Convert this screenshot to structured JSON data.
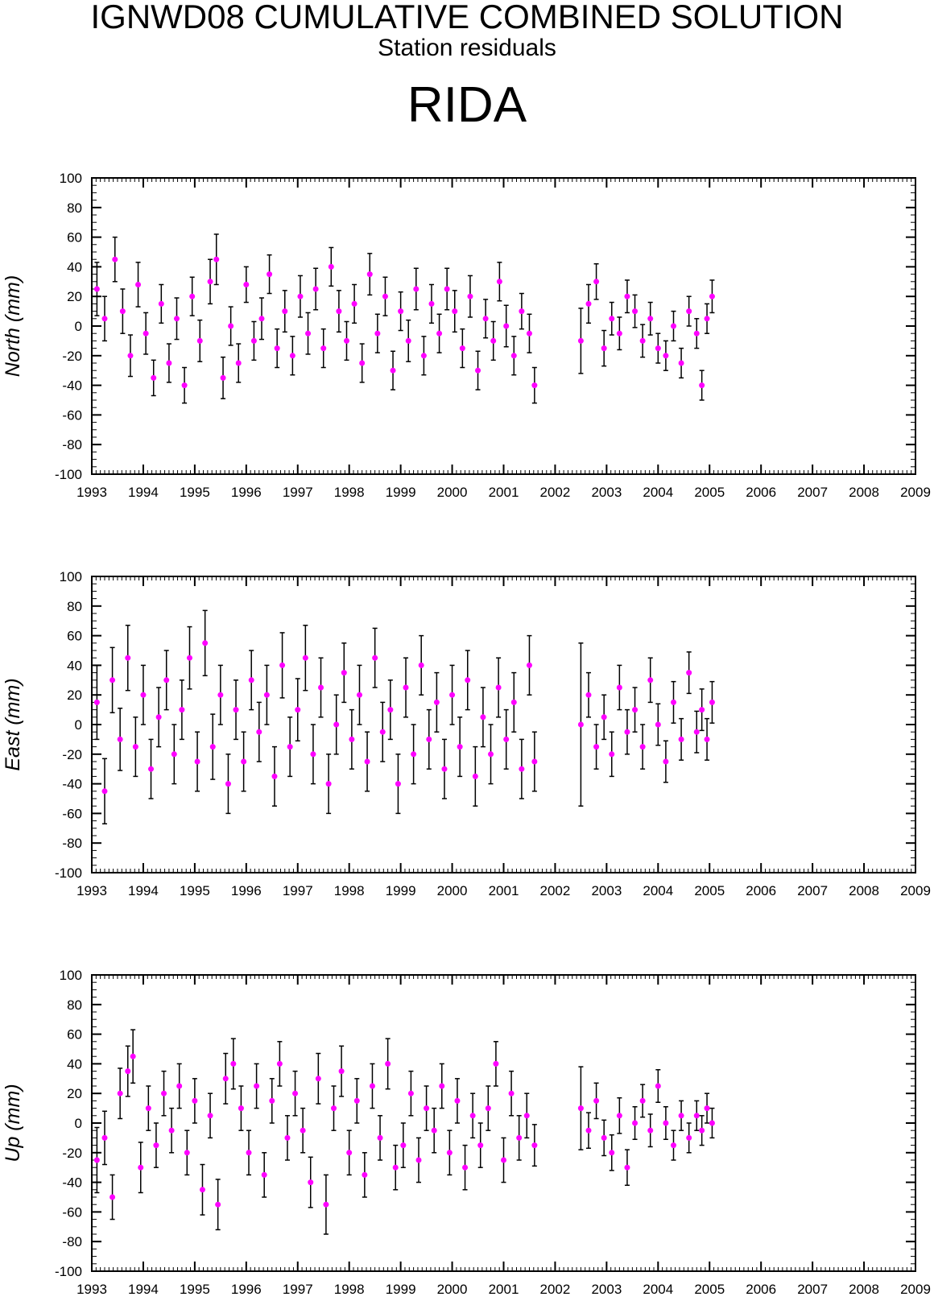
{
  "header": {
    "title": "IGNWD08 CUMULATIVE COMBINED SOLUTION",
    "subtitle": "Station residuals",
    "station": "RIDA"
  },
  "colors": {
    "point": "#ff00ff",
    "errorbar": "#000000",
    "frame": "#000000"
  },
  "chart_data": [
    {
      "type": "scatter",
      "ylabel": "North (mm)",
      "xlim": [
        1993,
        2009
      ],
      "ylim": [
        -100,
        100
      ],
      "x_ticks": [
        "1993",
        "1994",
        "1995",
        "1996",
        "1997",
        "1998",
        "1999",
        "2000",
        "2001",
        "2002",
        "2003",
        "2004",
        "2005",
        "2006",
        "2007",
        "2008",
        "2009"
      ],
      "y_ticks": [
        "100",
        "80",
        "60",
        "40",
        "20",
        "0",
        "-20",
        "-40",
        "-60",
        "-80",
        "-100"
      ],
      "error_bars": true,
      "series": [
        {
          "x": [
            1993.1,
            1993.25,
            1993.45,
            1993.6,
            1993.75,
            1993.9,
            1994.05,
            1994.2,
            1994.35,
            1994.5,
            1994.65,
            1994.8,
            1994.95,
            1995.1,
            1995.3,
            1995.42,
            1995.55,
            1995.7,
            1995.85,
            1996.0,
            1996.15,
            1996.3,
            1996.45,
            1996.6,
            1996.75,
            1996.9,
            1997.05,
            1997.2,
            1997.35,
            1997.5,
            1997.65,
            1997.8,
            1997.95,
            1998.1,
            1998.25,
            1998.4,
            1998.55,
            1998.7,
            1998.85,
            1999.0,
            1999.15,
            1999.3,
            1999.45,
            1999.6,
            1999.75,
            1999.9,
            2000.05,
            2000.2,
            2000.35,
            2000.5,
            2000.65,
            2000.8,
            2000.92,
            2001.05,
            2001.2,
            2001.35,
            2001.5,
            2001.6,
            2002.5,
            2002.65,
            2002.8,
            2002.95,
            2003.1,
            2003.25,
            2003.4,
            2003.55,
            2003.7,
            2003.85,
            2004.0,
            2004.15,
            2004.3,
            2004.45,
            2004.6,
            2004.75,
            2004.85,
            2004.95,
            2005.05
          ],
          "y": [
            25,
            5,
            45,
            10,
            -20,
            28,
            -5,
            -35,
            15,
            -25,
            5,
            -40,
            20,
            -10,
            30,
            45,
            -35,
            0,
            -25,
            28,
            -10,
            5,
            35,
            -15,
            10,
            -20,
            20,
            -5,
            25,
            -15,
            40,
            10,
            -10,
            15,
            -25,
            35,
            -5,
            20,
            -30,
            10,
            -10,
            25,
            -20,
            15,
            -5,
            25,
            10,
            -15,
            20,
            -30,
            5,
            -10,
            30,
            0,
            -20,
            10,
            -5,
            -40,
            -10,
            15,
            30,
            -15,
            5,
            -5,
            20,
            10,
            -10,
            5,
            -15,
            -20,
            0,
            -25,
            10,
            -5,
            -40,
            5,
            20
          ],
          "err": [
            18,
            15,
            15,
            15,
            14,
            15,
            14,
            12,
            13,
            13,
            14,
            12,
            13,
            14,
            15,
            17,
            14,
            13,
            13,
            12,
            13,
            14,
            13,
            13,
            14,
            13,
            14,
            14,
            14,
            13,
            13,
            14,
            13,
            13,
            13,
            14,
            13,
            13,
            13,
            13,
            14,
            14,
            13,
            13,
            13,
            14,
            14,
            13,
            14,
            13,
            13,
            13,
            13,
            14,
            13,
            12,
            13,
            12,
            22,
            13,
            12,
            12,
            11,
            11,
            11,
            11,
            11,
            11,
            10,
            10,
            10,
            10,
            10,
            10,
            10,
            10,
            11
          ]
        }
      ]
    },
    {
      "type": "scatter",
      "ylabel": "East (mm)",
      "xlim": [
        1993,
        2009
      ],
      "ylim": [
        -100,
        100
      ],
      "x_ticks": [
        "1993",
        "1994",
        "1995",
        "1996",
        "1997",
        "1998",
        "1999",
        "2000",
        "2001",
        "2002",
        "2003",
        "2004",
        "2005",
        "2006",
        "2007",
        "2008",
        "2009"
      ],
      "y_ticks": [
        "100",
        "80",
        "60",
        "40",
        "20",
        "0",
        "-20",
        "-40",
        "-60",
        "-80",
        "-100"
      ],
      "error_bars": true,
      "series": [
        {
          "x": [
            1993.1,
            1993.25,
            1993.4,
            1993.55,
            1993.7,
            1993.85,
            1994.0,
            1994.15,
            1994.3,
            1994.45,
            1994.6,
            1994.75,
            1994.9,
            1995.05,
            1995.2,
            1995.35,
            1995.5,
            1995.65,
            1995.8,
            1995.95,
            1996.1,
            1996.25,
            1996.4,
            1996.55,
            1996.7,
            1996.85,
            1997.0,
            1997.15,
            1997.3,
            1997.45,
            1997.6,
            1997.75,
            1997.9,
            1998.05,
            1998.2,
            1998.35,
            1998.5,
            1998.65,
            1998.8,
            1998.95,
            1999.1,
            1999.25,
            1999.4,
            1999.55,
            1999.7,
            1999.85,
            2000.0,
            2000.15,
            2000.3,
            2000.45,
            2000.6,
            2000.75,
            2000.9,
            2001.05,
            2001.2,
            2001.35,
            2001.5,
            2001.6,
            2002.5,
            2002.65,
            2002.8,
            2002.95,
            2003.1,
            2003.25,
            2003.4,
            2003.55,
            2003.7,
            2003.85,
            2004.0,
            2004.15,
            2004.3,
            2004.45,
            2004.6,
            2004.75,
            2004.85,
            2004.95,
            2005.05
          ],
          "y": [
            15,
            -45,
            30,
            -10,
            45,
            -15,
            20,
            -30,
            5,
            30,
            -20,
            10,
            45,
            -25,
            55,
            -15,
            20,
            -40,
            10,
            -25,
            30,
            -5,
            20,
            -35,
            40,
            -15,
            10,
            45,
            -20,
            25,
            -40,
            0,
            35,
            -10,
            20,
            -25,
            45,
            -5,
            10,
            -40,
            25,
            -20,
            40,
            -10,
            15,
            -30,
            20,
            -15,
            30,
            -35,
            5,
            -20,
            25,
            -10,
            15,
            -30,
            40,
            -25,
            0,
            20,
            -15,
            5,
            -20,
            25,
            -5,
            10,
            -15,
            30,
            0,
            -25,
            15,
            -10,
            35,
            -5,
            10,
            -10,
            15
          ],
          "err": [
            25,
            22,
            22,
            21,
            22,
            20,
            20,
            20,
            20,
            20,
            20,
            20,
            21,
            20,
            22,
            22,
            20,
            20,
            20,
            20,
            20,
            20,
            20,
            20,
            22,
            20,
            21,
            22,
            20,
            20,
            20,
            20,
            20,
            20,
            20,
            20,
            20,
            20,
            20,
            20,
            20,
            20,
            20,
            20,
            20,
            20,
            20,
            20,
            20,
            20,
            20,
            20,
            20,
            20,
            20,
            20,
            20,
            20,
            55,
            15,
            15,
            15,
            15,
            15,
            15,
            15,
            15,
            15,
            14,
            14,
            14,
            14,
            14,
            14,
            14,
            14,
            14
          ]
        }
      ]
    },
    {
      "type": "scatter",
      "ylabel": "Up (mm)",
      "xlim": [
        1993,
        2009
      ],
      "ylim": [
        -100,
        100
      ],
      "x_ticks": [
        "1993",
        "1994",
        "1995",
        "1996",
        "1997",
        "1998",
        "1999",
        "2000",
        "2001",
        "2002",
        "2003",
        "2004",
        "2005",
        "2006",
        "2007",
        "2008",
        "2009"
      ],
      "y_ticks": [
        "100",
        "80",
        "60",
        "40",
        "20",
        "0",
        "-20",
        "-40",
        "-60",
        "-80",
        "-100"
      ],
      "error_bars": true,
      "series": [
        {
          "x": [
            1993.1,
            1993.25,
            1993.4,
            1993.55,
            1993.7,
            1993.8,
            1993.95,
            1994.1,
            1994.25,
            1994.4,
            1994.55,
            1994.7,
            1994.85,
            1995.0,
            1995.15,
            1995.3,
            1995.45,
            1995.6,
            1995.75,
            1995.9,
            1996.05,
            1996.2,
            1996.35,
            1996.5,
            1996.65,
            1996.8,
            1996.95,
            1997.1,
            1997.25,
            1997.4,
            1997.55,
            1997.7,
            1997.85,
            1998.0,
            1998.15,
            1998.3,
            1998.45,
            1998.6,
            1998.75,
            1998.9,
            1999.05,
            1999.2,
            1999.35,
            1999.5,
            1999.65,
            1999.8,
            1999.95,
            2000.1,
            2000.25,
            2000.4,
            2000.55,
            2000.7,
            2000.85,
            2001.0,
            2001.15,
            2001.3,
            2001.45,
            2001.6,
            2002.5,
            2002.65,
            2002.8,
            2002.95,
            2003.1,
            2003.25,
            2003.4,
            2003.55,
            2003.7,
            2003.85,
            2004.0,
            2004.15,
            2004.3,
            2004.45,
            2004.6,
            2004.75,
            2004.85,
            2004.95,
            2005.05
          ],
          "y": [
            -25,
            -10,
            -50,
            20,
            35,
            45,
            -30,
            10,
            -15,
            20,
            -5,
            25,
            -20,
            15,
            -45,
            5,
            -55,
            30,
            40,
            10,
            -20,
            25,
            -35,
            15,
            40,
            -10,
            20,
            -5,
            -40,
            30,
            -55,
            10,
            35,
            -20,
            15,
            -35,
            25,
            -10,
            40,
            -30,
            -15,
            20,
            -25,
            10,
            -5,
            25,
            -20,
            15,
            -30,
            5,
            -15,
            10,
            40,
            -25,
            20,
            -10,
            5,
            -15,
            10,
            -5,
            15,
            -10,
            -20,
            5,
            -30,
            0,
            15,
            -5,
            25,
            0,
            -15,
            5,
            -10,
            5,
            -5,
            10,
            0
          ],
          "err": [
            22,
            18,
            15,
            17,
            17,
            18,
            17,
            15,
            15,
            15,
            15,
            15,
            15,
            15,
            17,
            15,
            17,
            17,
            17,
            15,
            15,
            15,
            15,
            15,
            15,
            15,
            15,
            15,
            17,
            17,
            20,
            15,
            17,
            15,
            15,
            15,
            15,
            15,
            17,
            15,
            15,
            15,
            15,
            15,
            15,
            15,
            15,
            15,
            15,
            15,
            15,
            15,
            15,
            15,
            15,
            15,
            15,
            14,
            28,
            12,
            12,
            12,
            12,
            12,
            12,
            11,
            11,
            11,
            11,
            11,
            10,
            10,
            10,
            10,
            10,
            10,
            10
          ]
        }
      ]
    }
  ]
}
